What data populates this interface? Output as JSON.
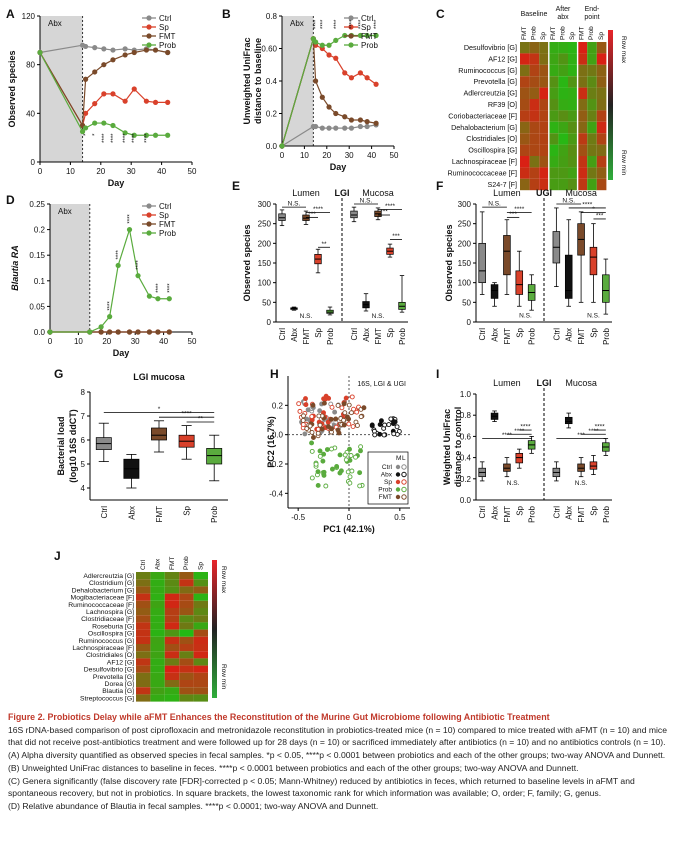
{
  "groups": {
    "names": [
      "Ctrl",
      "Sp",
      "FMT",
      "Prob"
    ],
    "colors": {
      "Ctrl": "#8a8a8a",
      "Sp": "#d9412b",
      "FMT": "#7a4a2a",
      "Prob": "#5aab3e",
      "Abx": "#111111"
    }
  },
  "panels": {
    "A": {
      "letter": "A",
      "abx_label": "Abx",
      "chart_data": {
        "type": "line",
        "xlabel": "Day",
        "ylabel": "Observed species",
        "xlim": [
          0,
          50
        ],
        "ylim": [
          0,
          120
        ],
        "xticks": [
          0,
          10,
          20,
          30,
          40,
          50
        ],
        "yticks": [
          0,
          40,
          80,
          120
        ],
        "abx_window": [
          0,
          14
        ],
        "series": [
          {
            "name": "Ctrl",
            "x": [
              0,
              14,
              15,
              18,
              21,
              24,
              28,
              31,
              35,
              38,
              42
            ],
            "y": [
              90,
              96,
              95,
              94,
              93,
              92,
              93,
              92,
              93,
              92,
              90
            ]
          },
          {
            "name": "Sp",
            "x": [
              0,
              14,
              15,
              18,
              21,
              24,
              28,
              31,
              35,
              38,
              42
            ],
            "y": [
              90,
              30,
              40,
              48,
              56,
              56,
              50,
              60,
              50,
              49,
              49
            ]
          },
          {
            "name": "FMT",
            "x": [
              0,
              14,
              15,
              18,
              21,
              24,
              28,
              31,
              35,
              38,
              42
            ],
            "y": [
              90,
              30,
              68,
              74,
              80,
              84,
              88,
              90,
              92,
              92,
              90
            ]
          },
          {
            "name": "Prob",
            "x": [
              0,
              14,
              15,
              18,
              21,
              24,
              28,
              31,
              35,
              38,
              42
            ],
            "y": [
              90,
              25,
              28,
              32,
              32,
              30,
              24,
              22,
              22,
              22,
              22
            ]
          }
        ],
        "annotations": [
          "*",
          "*",
          "****",
          "****",
          "****",
          "****",
          "****"
        ]
      }
    },
    "B": {
      "letter": "B",
      "abx_label": "Abx",
      "chart_data": {
        "type": "line",
        "xlabel": "Day",
        "ylabel": "Unweighted UniFrac distance to baseline",
        "xlim": [
          0,
          50
        ],
        "ylim": [
          0.0,
          0.8
        ],
        "xticks": [
          0,
          10,
          20,
          30,
          40,
          50
        ],
        "yticks": [
          0.0,
          0.2,
          0.4,
          0.6,
          0.8
        ],
        "abx_window": [
          0,
          14
        ],
        "series": [
          {
            "name": "Ctrl",
            "x": [
              0,
              14,
              15,
              18,
              21,
              24,
              28,
              31,
              35,
              38,
              42
            ],
            "y": [
              0.0,
              0.12,
              0.12,
              0.11,
              0.11,
              0.11,
              0.11,
              0.11,
              0.12,
              0.12,
              0.13
            ]
          },
          {
            "name": "Sp",
            "x": [
              0,
              14,
              15,
              18,
              21,
              24,
              28,
              31,
              35,
              38,
              42
            ],
            "y": [
              0.0,
              0.66,
              0.62,
              0.6,
              0.56,
              0.54,
              0.45,
              0.42,
              0.45,
              0.42,
              0.38
            ]
          },
          {
            "name": "FMT",
            "x": [
              0,
              14,
              15,
              18,
              21,
              24,
              28,
              31,
              35,
              38,
              42
            ],
            "y": [
              0.0,
              0.66,
              0.4,
              0.3,
              0.24,
              0.2,
              0.18,
              0.16,
              0.16,
              0.15,
              0.14
            ]
          },
          {
            "name": "Prob",
            "x": [
              0,
              14,
              15,
              18,
              21,
              24,
              28,
              31,
              35,
              38,
              42
            ],
            "y": [
              0.0,
              0.66,
              0.64,
              0.62,
              0.62,
              0.65,
              0.68,
              0.68,
              0.68,
              0.68,
              0.68
            ]
          }
        ],
        "annotations": [
          "****",
          "****",
          "****",
          "****",
          "****",
          "****"
        ]
      }
    },
    "C": {
      "letter": "C",
      "headers": [
        "Baseline",
        "After abx",
        "End-point"
      ],
      "columns": [
        "FMT",
        "Prob",
        "Sp",
        "FMT",
        "Prob",
        "Sp",
        "FMT",
        "Prob",
        "Sp"
      ],
      "rows": [
        "Desulfovibrio [G]",
        "AF12 [G]",
        "Ruminococcus [G]",
        "Prevotella [G]",
        "Adlercreutzia [G]",
        "RF39 [O]",
        "Coriobacteriaceae [F]",
        "Dehalobacterium [G]",
        "Clostridiales [O]",
        "Oscillospira [G]",
        "Lachnospiraceae [F]",
        "Ruminococcaceae [F]",
        "S24-7 [F]"
      ],
      "legend": {
        "max": "Row max",
        "min": "Row min",
        "max_color": "#e8242a",
        "min_color": "#2fae3a"
      }
    },
    "D": {
      "letter": "D",
      "abx_label": "Abx",
      "chart_data": {
        "type": "line",
        "xlabel": "Day",
        "ylabel": "Blautia RA",
        "xlim": [
          0,
          50
        ],
        "ylim": [
          0.0,
          0.25
        ],
        "xticks": [
          0,
          10,
          20,
          30,
          40,
          50
        ],
        "yticks": [
          0.0,
          0.05,
          0.1,
          0.15,
          0.2,
          0.25
        ],
        "abx_window": [
          0,
          14
        ],
        "series": [
          {
            "name": "Ctrl",
            "x": [
              0,
              14,
              18,
              21,
              24,
              28,
              31,
              35,
              38,
              42
            ],
            "y": [
              0,
              0,
              0,
              0,
              0,
              0,
              0,
              0,
              0,
              0
            ]
          },
          {
            "name": "Sp",
            "x": [
              0,
              14,
              18,
              21,
              24,
              28,
              31,
              35,
              38,
              42
            ],
            "y": [
              0,
              0,
              0,
              0,
              0,
              0,
              0,
              0,
              0,
              0
            ]
          },
          {
            "name": "FMT",
            "x": [
              0,
              14,
              18,
              21,
              24,
              28,
              31,
              35,
              38,
              42
            ],
            "y": [
              0,
              0,
              0,
              0,
              0,
              0,
              0,
              0,
              0,
              0
            ]
          },
          {
            "name": "Prob",
            "x": [
              0,
              14,
              18,
              21,
              24,
              28,
              31,
              35,
              38,
              42
            ],
            "y": [
              0,
              0,
              0.01,
              0.03,
              0.13,
              0.2,
              0.11,
              0.07,
              0.065,
              0.065
            ]
          }
        ],
        "annotations": [
          "****",
          "****",
          "****",
          "****",
          "****",
          "****"
        ]
      }
    },
    "E": {
      "letter": "E",
      "section": "LGI",
      "left_label": "Lumen",
      "right_label": "Mucosa",
      "ylabel": "Observed species",
      "yticks": [
        0,
        50,
        100,
        150,
        200,
        250,
        300
      ],
      "ylim": [
        0,
        300
      ],
      "categories": [
        "Ctrl",
        "Abx",
        "FMT",
        "Sp",
        "Prob",
        "Ctrl",
        "Abx",
        "FMT",
        "Sp",
        "Prob"
      ],
      "boxes": [
        [
          245,
          258,
          265,
          275,
          285
        ],
        [
          30,
          32,
          34,
          36,
          38
        ],
        [
          248,
          258,
          264,
          272,
          282
        ],
        [
          125,
          148,
          160,
          172,
          185
        ],
        [
          18,
          22,
          25,
          30,
          38
        ],
        [
          255,
          265,
          272,
          282,
          292
        ],
        [
          28,
          36,
          44,
          52,
          72
        ],
        [
          260,
          268,
          275,
          282,
          290
        ],
        [
          165,
          172,
          180,
          188,
          198
        ],
        [
          25,
          32,
          40,
          50,
          118
        ]
      ],
      "annotations": [
        "N.S.",
        "****",
        "***",
        "**",
        "N.S.",
        "N.S.",
        "****",
        "***",
        "***",
        "N.S."
      ]
    },
    "F": {
      "letter": "F",
      "section": "UGI",
      "left_label": "Lumen",
      "right_label": "Mucosa",
      "ylabel": "Observed species",
      "yticks": [
        0,
        50,
        100,
        150,
        200,
        250,
        300
      ],
      "ylim": [
        0,
        300
      ],
      "categories": [
        "Ctrl",
        "Abx",
        "FMT",
        "Sp",
        "Prob",
        "Ctrl",
        "Abx",
        "FMT",
        "Sp",
        "Prob"
      ],
      "boxes": [
        [
          70,
          100,
          130,
          200,
          280
        ],
        [
          40,
          60,
          80,
          95,
          100
        ],
        [
          70,
          120,
          180,
          220,
          260
        ],
        [
          40,
          70,
          95,
          130,
          180
        ],
        [
          30,
          55,
          75,
          95,
          120
        ],
        [
          90,
          150,
          190,
          230,
          290
        ],
        [
          40,
          60,
          80,
          170,
          260
        ],
        [
          50,
          170,
          210,
          250,
          280
        ],
        [
          50,
          120,
          165,
          190,
          250
        ],
        [
          20,
          50,
          80,
          120,
          160
        ]
      ],
      "annotations": [
        "N.S.",
        "****",
        "***",
        "N.S.",
        "N.S.",
        "****",
        "*",
        "***",
        "N.S."
      ]
    },
    "G": {
      "letter": "G",
      "title": "LGI mucosa",
      "ylabel": "Bacterial load (log10 16S ddCT)",
      "yticks": [
        4,
        5,
        6,
        7,
        8
      ],
      "ylim": [
        3.5,
        8
      ],
      "categories": [
        "Ctrl",
        "Abx",
        "FMT",
        "Sp",
        "Prob"
      ],
      "boxes": [
        [
          5.1,
          5.6,
          5.85,
          6.1,
          6.7
        ],
        [
          4.0,
          4.4,
          4.8,
          5.2,
          5.4
        ],
        [
          5.5,
          6.0,
          6.2,
          6.5,
          6.8
        ],
        [
          5.2,
          5.7,
          5.95,
          6.2,
          6.6
        ],
        [
          4.3,
          5.0,
          5.35,
          5.65,
          6.2
        ]
      ],
      "annotations": [
        "*",
        "****",
        "**"
      ]
    },
    "H": {
      "letter": "H",
      "subtitle": "16S, LGI & UGI",
      "chart_data": {
        "type": "scatter",
        "xlabel": "PC1 (42.1%)",
        "ylabel": "PC2 (16.7%)",
        "xlim": [
          -0.6,
          0.6
        ],
        "ylim": [
          -0.5,
          0.4
        ],
        "xticks": [
          -0.5,
          0.0,
          0.5
        ],
        "yticks": [
          -0.4,
          -0.2,
          0.0,
          0.2
        ],
        "legend": {
          "header_m": "M",
          "header_l": "L",
          "entries": [
            "Ctrl",
            "Abx",
            "Sp",
            "Prob",
            "FMT"
          ],
          "placement": "bottom-right"
        }
      }
    },
    "I": {
      "letter": "I",
      "section": "LGI",
      "left_label": "Lumen",
      "right_label": "Mucosa",
      "ylabel": "Weighted UniFrac distance to control",
      "yticks": [
        0.0,
        0.2,
        0.4,
        0.6,
        0.8,
        1.0
      ],
      "ylim": [
        0,
        1.0
      ],
      "categories": [
        "Ctrl",
        "Abx",
        "FMT",
        "Sp",
        "Prob",
        "Ctrl",
        "Abx",
        "FMT",
        "Sp",
        "Prob"
      ],
      "boxes": [
        [
          0.18,
          0.22,
          0.26,
          0.3,
          0.36
        ],
        [
          0.74,
          0.76,
          0.79,
          0.82,
          0.84
        ],
        [
          0.22,
          0.27,
          0.3,
          0.34,
          0.4
        ],
        [
          0.3,
          0.35,
          0.4,
          0.44,
          0.48
        ],
        [
          0.44,
          0.48,
          0.52,
          0.56,
          0.6
        ],
        [
          0.18,
          0.22,
          0.26,
          0.3,
          0.36
        ],
        [
          0.68,
          0.72,
          0.74,
          0.78,
          0.82
        ],
        [
          0.22,
          0.27,
          0.3,
          0.34,
          0.4
        ],
        [
          0.24,
          0.29,
          0.32,
          0.36,
          0.42
        ],
        [
          0.42,
          0.46,
          0.5,
          0.54,
          0.58
        ]
      ],
      "annotations": [
        "****",
        "****",
        "****",
        "N.S.",
        "****",
        "****",
        "***",
        "N.S."
      ]
    },
    "J": {
      "letter": "J",
      "columns": [
        "Ctrl",
        "Abx",
        "FMT",
        "Prob",
        "Sp"
      ],
      "rows": [
        "Adlercreutzia [G]",
        "Clostridium [G]",
        "Dehalobacterium [G]",
        "Mogibacteriaceae [F]",
        "Ruminococcaceae [F]",
        "Lachnospira [G]",
        "Clostridiaceae [F]",
        "Roseburia [G]",
        "Oscillospira [G]",
        "Ruminococcus [G]",
        "Lachnospiraceae [F]",
        "Clostridiales [O]",
        "AF12 [G]",
        "Desulfovibrio [G]",
        "Prevotella [G]",
        "Dorea [G]",
        "Blautia [G]",
        "Streptococcus [G]"
      ],
      "legend": {
        "max": "Row max",
        "min": "Row min"
      }
    }
  },
  "caption": {
    "title": "Figure 2. Probiotics Delay while aFMT Enhances the Reconstitution of the Murine Gut Microbiome following Antibiotic Treatment",
    "body": "16S rDNA-based comparison of post ciprofloxacin and metronidazole reconstitution in probiotics-treated mice (n = 10) compared to mice treated with aFMT (n = 10) and mice that did not receive post-antibiotics treatment and were followed up for 28 days (n = 10) or sacrificed immediately after antibiotics (n = 10) and no antibiotics controls (n = 10).",
    "a": "(A) Alpha diversity quantified as observed species in fecal samples. *p < 0.05, ****p < 0.0001 between probiotics and each of the other groups; two-way ANOVA and Dunnett.",
    "b": "(B) Unweighted UniFrac distances to baseline in feces. ****p < 0.0001 between probiotics and each of the other groups; two-way ANOVA and Dunnett.",
    "c": "(C) Genera significantly (false discovery rate [FDR]-corrected p < 0.05; Mann-Whitney) reduced by antibiotics in feces, which returned to baseline levels in aFMT and spontaneous recovery, but not in probiotics. In square brackets, the lowest taxonomic rank for which information was available; O, order; F, family; G, genus.",
    "d": "(D) Relative abundance of Blautia in fecal samples. ****p < 0.0001; two-way ANOVA and Dunnett."
  }
}
